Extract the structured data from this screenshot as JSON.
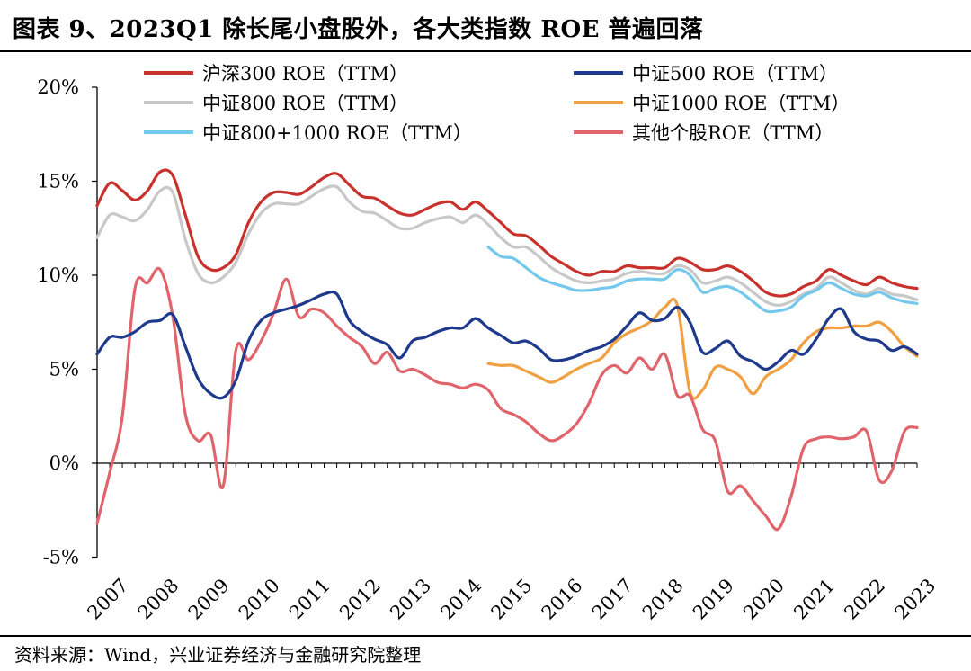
{
  "title": "图表 9、2023Q1 除长尾小盘股外，各大类指数 ROE 普遍回落",
  "source": "资料来源：Wind，兴业证券经济与金融研究院整理",
  "chart_data": {
    "type": "line",
    "title": "图表 9、2023Q1 除长尾小盘股外，各大类指数 ROE 普遍回落",
    "xlabel": "",
    "ylabel": "",
    "ylim": [
      -5,
      20
    ],
    "xlim": [
      2007.0,
      2023.25
    ],
    "yticks": [
      -5,
      0,
      5,
      10,
      15,
      20
    ],
    "ytick_labels": [
      "-5%",
      "0%",
      "5%",
      "10%",
      "15%",
      "20%"
    ],
    "xticks": [
      2007,
      2008,
      2009,
      2010,
      2011,
      2012,
      2013,
      2014,
      2015,
      2016,
      2017,
      2018,
      2019,
      2020,
      2021,
      2022,
      2023
    ],
    "xtick_labels": [
      "2007",
      "2008",
      "2009",
      "2010",
      "2011",
      "2012",
      "2013",
      "2014",
      "2015",
      "2016",
      "2017",
      "2018",
      "2019",
      "2020",
      "2021",
      "2022",
      "2023"
    ],
    "grid": false,
    "legend_position": "top",
    "series": [
      {
        "name": "沪深300 ROE（TTM）",
        "color": "#c8322c",
        "x": [
          2007.0,
          2007.25,
          2007.5,
          2007.75,
          2008.0,
          2008.25,
          2008.5,
          2008.75,
          2009.0,
          2009.25,
          2009.5,
          2009.75,
          2010.0,
          2010.25,
          2010.5,
          2010.75,
          2011.0,
          2011.25,
          2011.5,
          2011.75,
          2012.0,
          2012.25,
          2012.5,
          2012.75,
          2013.0,
          2013.25,
          2013.5,
          2013.75,
          2014.0,
          2014.25,
          2014.5,
          2014.75,
          2015.0,
          2015.25,
          2015.5,
          2015.75,
          2016.0,
          2016.25,
          2016.5,
          2016.75,
          2017.0,
          2017.25,
          2017.5,
          2017.75,
          2018.0,
          2018.25,
          2018.5,
          2018.75,
          2019.0,
          2019.25,
          2019.5,
          2019.75,
          2020.0,
          2020.25,
          2020.5,
          2020.75,
          2021.0,
          2021.25,
          2021.5,
          2021.75,
          2022.0,
          2022.25,
          2022.5,
          2022.75,
          2023.0,
          2023.25
        ],
        "values": [
          13.7,
          14.9,
          14.5,
          14.0,
          14.5,
          15.5,
          15.3,
          13.2,
          11.0,
          10.3,
          10.4,
          11.1,
          12.8,
          13.9,
          14.4,
          14.4,
          14.3,
          14.7,
          15.2,
          15.4,
          14.8,
          14.2,
          14.1,
          13.7,
          13.3,
          13.2,
          13.5,
          13.8,
          13.9,
          13.5,
          13.9,
          13.4,
          12.8,
          12.2,
          12.1,
          11.6,
          11.0,
          10.6,
          10.2,
          10.0,
          10.2,
          10.2,
          10.5,
          10.4,
          10.4,
          10.4,
          10.9,
          10.7,
          10.3,
          10.3,
          10.5,
          10.2,
          9.7,
          9.1,
          8.9,
          9.0,
          9.4,
          9.7,
          10.3,
          10.0,
          9.7,
          9.5,
          9.9,
          9.6,
          9.4,
          9.3
        ]
      },
      {
        "name": "中证500 ROE（TTM）",
        "color": "#1f3a8c",
        "x": [
          2007.0,
          2007.25,
          2007.5,
          2007.75,
          2008.0,
          2008.25,
          2008.5,
          2008.75,
          2009.0,
          2009.25,
          2009.5,
          2009.75,
          2010.0,
          2010.25,
          2010.5,
          2010.75,
          2011.0,
          2011.25,
          2011.5,
          2011.75,
          2012.0,
          2012.25,
          2012.5,
          2012.75,
          2013.0,
          2013.25,
          2013.5,
          2013.75,
          2014.0,
          2014.25,
          2014.5,
          2014.75,
          2015.0,
          2015.25,
          2015.5,
          2015.75,
          2016.0,
          2016.25,
          2016.5,
          2016.75,
          2017.0,
          2017.25,
          2017.5,
          2017.75,
          2018.0,
          2018.25,
          2018.5,
          2018.75,
          2019.0,
          2019.25,
          2019.5,
          2019.75,
          2020.0,
          2020.25,
          2020.5,
          2020.75,
          2021.0,
          2021.25,
          2021.5,
          2021.75,
          2022.0,
          2022.25,
          2022.5,
          2022.75,
          2023.0,
          2023.25
        ],
        "values": [
          5.8,
          6.7,
          6.7,
          7.0,
          7.5,
          7.6,
          7.9,
          6.2,
          4.5,
          3.7,
          3.5,
          4.4,
          6.5,
          7.6,
          8.0,
          8.2,
          8.4,
          8.7,
          9.0,
          9.0,
          7.6,
          7.0,
          6.6,
          6.3,
          5.6,
          6.5,
          6.7,
          7.0,
          7.2,
          7.2,
          7.7,
          7.2,
          6.8,
          6.4,
          6.5,
          6.1,
          5.5,
          5.5,
          5.7,
          6.0,
          6.2,
          6.6,
          7.3,
          8.0,
          7.6,
          7.7,
          8.3,
          7.5,
          5.9,
          6.1,
          6.5,
          5.7,
          5.4,
          5.0,
          5.4,
          6.0,
          5.8,
          6.6,
          7.7,
          8.2,
          7.0,
          6.6,
          6.5,
          6.0,
          6.2,
          5.8
        ]
      },
      {
        "name": "中证800 ROE（TTM）",
        "color": "#c8c8c8",
        "x": [
          2007.0,
          2007.25,
          2007.5,
          2007.75,
          2008.0,
          2008.25,
          2008.5,
          2008.75,
          2009.0,
          2009.25,
          2009.5,
          2009.75,
          2010.0,
          2010.25,
          2010.5,
          2010.75,
          2011.0,
          2011.25,
          2011.5,
          2011.75,
          2012.0,
          2012.25,
          2012.5,
          2012.75,
          2013.0,
          2013.25,
          2013.5,
          2013.75,
          2014.0,
          2014.25,
          2014.5,
          2014.75,
          2015.0,
          2015.25,
          2015.5,
          2015.75,
          2016.0,
          2016.25,
          2016.5,
          2016.75,
          2017.0,
          2017.25,
          2017.5,
          2017.75,
          2018.0,
          2018.25,
          2018.5,
          2018.75,
          2019.0,
          2019.25,
          2019.5,
          2019.75,
          2020.0,
          2020.25,
          2020.5,
          2020.75,
          2021.0,
          2021.25,
          2021.5,
          2021.75,
          2022.0,
          2022.25,
          2022.5,
          2022.75,
          2023.0,
          2023.25
        ],
        "values": [
          12.0,
          13.2,
          13.1,
          12.9,
          13.5,
          14.5,
          14.4,
          11.9,
          10.1,
          9.6,
          9.9,
          10.7,
          12.2,
          13.3,
          13.8,
          13.8,
          13.8,
          14.2,
          14.6,
          14.7,
          13.9,
          13.4,
          13.3,
          12.9,
          12.5,
          12.5,
          12.8,
          13.0,
          13.1,
          12.8,
          13.2,
          12.7,
          12.0,
          11.5,
          11.5,
          11.0,
          10.4,
          10.0,
          9.7,
          9.6,
          9.7,
          9.8,
          10.1,
          10.2,
          10.1,
          10.1,
          10.5,
          10.3,
          9.6,
          9.7,
          9.9,
          9.6,
          9.1,
          8.6,
          8.4,
          8.6,
          9.0,
          9.3,
          9.9,
          9.6,
          9.2,
          9.0,
          9.3,
          9.0,
          8.9,
          8.7
        ]
      },
      {
        "name": "中证1000 ROE（TTM）",
        "color": "#f0a040",
        "x": [
          2014.75,
          2015.0,
          2015.25,
          2015.5,
          2015.75,
          2016.0,
          2016.25,
          2016.5,
          2016.75,
          2017.0,
          2017.25,
          2017.5,
          2017.75,
          2018.0,
          2018.25,
          2018.5,
          2018.75,
          2019.0,
          2019.25,
          2019.5,
          2019.75,
          2020.0,
          2020.25,
          2020.5,
          2020.75,
          2021.0,
          2021.25,
          2021.5,
          2021.75,
          2022.0,
          2022.25,
          2022.5,
          2022.75,
          2023.0,
          2023.25
        ],
        "values": [
          5.3,
          5.2,
          5.2,
          4.9,
          4.6,
          4.3,
          4.6,
          5.0,
          5.3,
          5.6,
          6.4,
          6.9,
          7.2,
          7.6,
          8.3,
          8.4,
          3.8,
          3.9,
          5.1,
          5.0,
          4.6,
          3.7,
          4.6,
          5.0,
          5.5,
          6.4,
          7.0,
          7.2,
          7.2,
          7.3,
          7.3,
          7.5,
          7.0,
          6.2,
          5.7
        ]
      },
      {
        "name": "中证800+1000 ROE（TTM）",
        "color": "#74c8ec",
        "x": [
          2014.75,
          2015.0,
          2015.25,
          2015.5,
          2015.75,
          2016.0,
          2016.25,
          2016.5,
          2016.75,
          2017.0,
          2017.25,
          2017.5,
          2017.75,
          2018.0,
          2018.25,
          2018.5,
          2018.75,
          2019.0,
          2019.25,
          2019.5,
          2019.75,
          2020.0,
          2020.25,
          2020.5,
          2020.75,
          2021.0,
          2021.25,
          2021.5,
          2021.75,
          2022.0,
          2022.25,
          2022.5,
          2022.75,
          2023.0,
          2023.25
        ],
        "values": [
          11.5,
          11.0,
          10.9,
          10.4,
          9.9,
          9.6,
          9.4,
          9.2,
          9.2,
          9.3,
          9.4,
          9.7,
          9.8,
          9.8,
          9.8,
          10.3,
          10.0,
          9.1,
          9.3,
          9.4,
          9.1,
          8.6,
          8.1,
          8.1,
          8.3,
          8.9,
          9.2,
          9.6,
          9.3,
          9.0,
          8.9,
          9.1,
          8.8,
          8.6,
          8.5
        ]
      },
      {
        "name": "其他个股ROE（TTM）",
        "color": "#e0646c",
        "x": [
          2007.0,
          2007.25,
          2007.5,
          2007.75,
          2008.0,
          2008.25,
          2008.5,
          2008.75,
          2009.0,
          2009.25,
          2009.5,
          2009.75,
          2010.0,
          2010.25,
          2010.5,
          2010.75,
          2011.0,
          2011.25,
          2011.5,
          2011.75,
          2012.0,
          2012.25,
          2012.5,
          2012.75,
          2013.0,
          2013.25,
          2013.5,
          2013.75,
          2014.0,
          2014.25,
          2014.5,
          2014.75,
          2015.0,
          2015.25,
          2015.5,
          2015.75,
          2016.0,
          2016.25,
          2016.5,
          2016.75,
          2017.0,
          2017.25,
          2017.5,
          2017.75,
          2018.0,
          2018.25,
          2018.5,
          2018.75,
          2019.0,
          2019.25,
          2019.5,
          2019.75,
          2020.0,
          2020.25,
          2020.5,
          2020.75,
          2021.0,
          2021.25,
          2021.5,
          2021.75,
          2022.0,
          2022.25,
          2022.5,
          2022.75,
          2023.0,
          2023.25
        ],
        "values": [
          -3.2,
          -0.5,
          2.5,
          9.3,
          9.6,
          10.3,
          7.8,
          2.6,
          1.2,
          1.5,
          -1.2,
          6.0,
          5.5,
          6.5,
          8.0,
          9.8,
          7.8,
          8.2,
          8.0,
          7.3,
          6.7,
          6.2,
          5.3,
          5.9,
          4.9,
          5.0,
          4.7,
          4.3,
          4.2,
          4.0,
          4.2,
          3.9,
          2.9,
          2.6,
          2.2,
          1.6,
          1.2,
          1.5,
          2.1,
          3.2,
          4.7,
          5.2,
          4.8,
          5.6,
          5.0,
          5.8,
          3.6,
          3.6,
          1.8,
          1.2,
          -1.5,
          -1.2,
          -2.0,
          -2.8,
          -3.5,
          -1.8,
          0.8,
          1.3,
          1.4,
          1.3,
          1.4,
          1.7,
          -0.9,
          -0.4,
          1.7,
          1.9
        ]
      }
    ]
  }
}
